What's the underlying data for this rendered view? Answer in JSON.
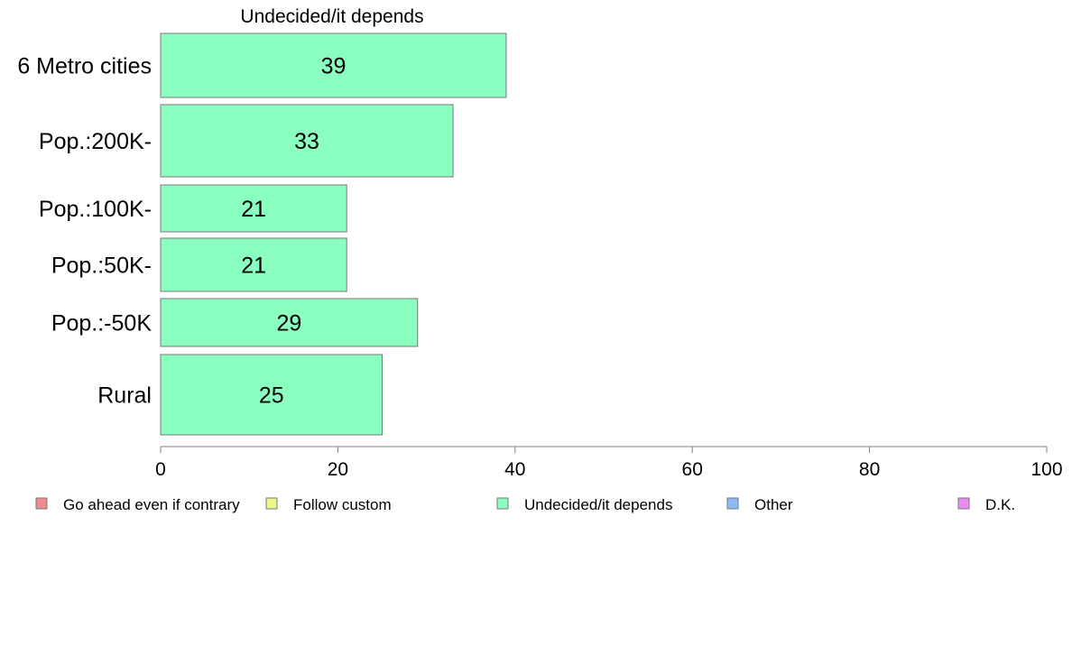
{
  "chart_data": {
    "type": "bar",
    "orientation": "horizontal",
    "title": "Undecided/it depends",
    "categories": [
      "6 Metro cities",
      "Pop.:200K-",
      "Pop.:100K-",
      "Pop.:50K-",
      "Pop.:-50K",
      "Rural"
    ],
    "series": [
      {
        "name": "Undecided/it depends",
        "values": [
          39,
          33,
          21,
          21,
          29,
          25
        ]
      }
    ],
    "data_labels": [
      "39",
      "33",
      "21",
      "21",
      "29",
      "25"
    ],
    "xlim": [
      0,
      100
    ],
    "xticks": [
      0,
      20,
      40,
      60,
      80,
      100
    ],
    "xtick_labels": [
      "0",
      "20",
      "40",
      "60",
      "80",
      "100"
    ],
    "xlabel": "",
    "ylabel": "",
    "grid": false,
    "legend_position": "bottom",
    "legend": [
      {
        "label": "Go ahead even if contrary",
        "color": "#f28b8b"
      },
      {
        "label": "Follow custom",
        "color": "#eef58b"
      },
      {
        "label": "Undecided/it depends",
        "color": "#8bffbf"
      },
      {
        "label": "Other",
        "color": "#8bbaf5"
      },
      {
        "label": "D.K.",
        "color": "#ea8bf2"
      }
    ],
    "bar_color": "#8bffbf",
    "bar_edge_color": "#7a7a7a",
    "axis_color": "#808080"
  }
}
